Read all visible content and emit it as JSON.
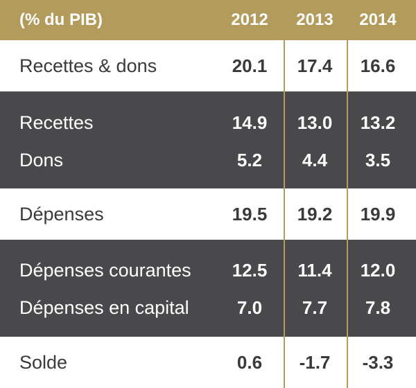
{
  "chart_data": {
    "type": "table",
    "unit_label": "(% du PIB)",
    "columns": [
      "2012",
      "2013",
      "2014"
    ],
    "rows": [
      {
        "label": "Recettes & dons",
        "values": [
          "20.1",
          "17.4",
          "16.6"
        ]
      },
      {
        "label": "Recettes",
        "values": [
          "14.9",
          "13.0",
          "13.2"
        ]
      },
      {
        "label": "Dons",
        "values": [
          "5.2",
          "4.4",
          "3.5"
        ]
      },
      {
        "label": "Dépenses",
        "values": [
          "19.5",
          "19.2",
          "19.9"
        ]
      },
      {
        "label": "Dépenses courantes",
        "values": [
          "12.5",
          "11.4",
          "12.0"
        ]
      },
      {
        "label": "Dépenses en capital",
        "values": [
          "7.0",
          "7.7",
          "7.8"
        ]
      },
      {
        "label": "Solde",
        "values": [
          "0.6",
          "-1.7",
          "-3.3"
        ]
      }
    ]
  },
  "colors": {
    "header_background": "#b39b5c",
    "dark_band": "#49494b",
    "divider": "#b39b5c"
  }
}
